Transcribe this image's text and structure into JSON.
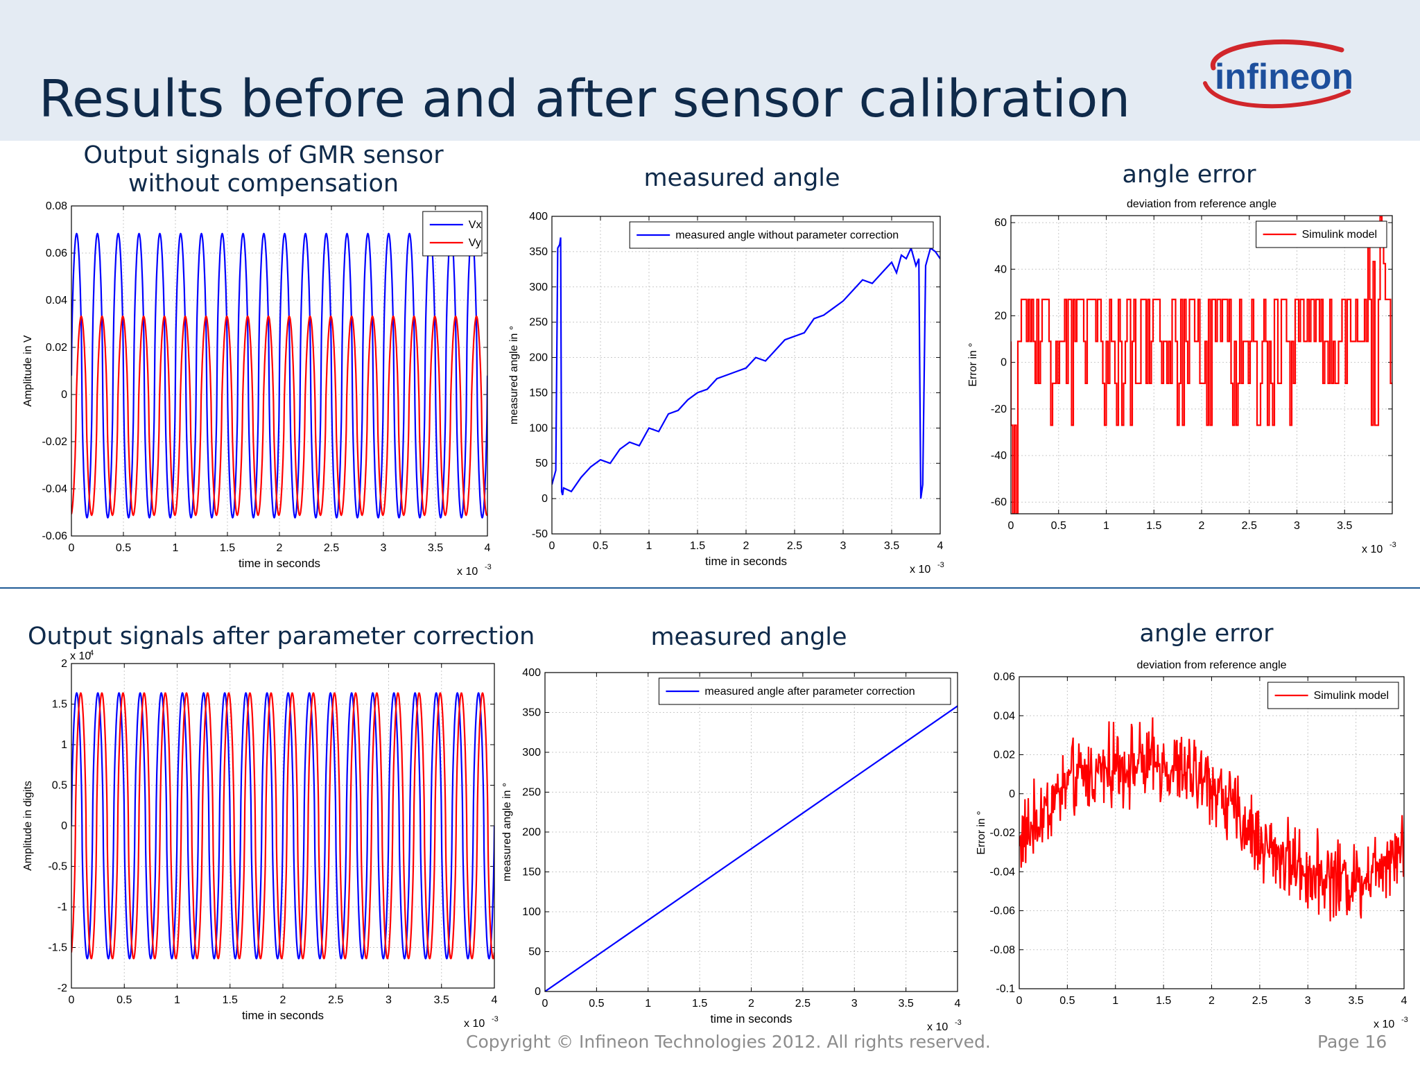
{
  "slide": {
    "title": "Results before and after sensor calibration",
    "logo_text": "infineon",
    "copyright": "Copyright © Infineon Technologies 2012. All rights reserved.",
    "page": "Page 16",
    "colors": {
      "header_bg": "#e4ebf3",
      "title": "#0f2a4a",
      "divider": "#1f5a96",
      "logo_blue": "#1d4f9c",
      "logo_red": "#d1262b"
    }
  },
  "sections": {
    "top": {
      "signals_heading": [
        "Output signals of GMR sensor",
        "without compensation"
      ],
      "angle_heading": "measured angle",
      "error_heading": "angle error"
    },
    "bottom": {
      "signals_heading": "Output signals after parameter correction",
      "angle_heading": "measured angle",
      "error_heading": "angle error"
    }
  },
  "chart_data": [
    {
      "id": "sig-top",
      "type": "line",
      "title": "",
      "xlabel": "time in seconds",
      "x_exponent": "x 10",
      "x_exponent_power": "-3",
      "ylabel": "Amplitude in V",
      "y_exponent": "",
      "y_exponent_power": "",
      "xlim": [
        0,
        4
      ],
      "ylim": [
        -0.06,
        0.08
      ],
      "grid": true,
      "legend": "top-right",
      "xticks": [
        0,
        0.5,
        1,
        1.5,
        2,
        2.5,
        3,
        3.5,
        4
      ],
      "xtick_labels": [
        "0",
        "0.5",
        "1",
        "1.5",
        "2",
        "2.5",
        "3",
        "3.5",
        "4"
      ],
      "yticks": [
        -0.06,
        -0.04,
        -0.02,
        0,
        0.02,
        0.04,
        0.06,
        0.08
      ],
      "ytick_labels": [
        "-0.06",
        "-0.04",
        "-0.02",
        "0",
        "0.02",
        "0.04",
        "0.06",
        "0.08"
      ],
      "series": [
        {
          "name": "Vx",
          "color": "#0000ff",
          "kind": "sine",
          "amplitude": 0.06,
          "offset": 0.008,
          "cycles": 20,
          "phase": 0,
          "sharpness": 1.6
        },
        {
          "name": "Vy",
          "color": "#ff0000",
          "kind": "sine",
          "amplitude": 0.042,
          "offset": -0.009,
          "cycles": 20,
          "phase": -1.4,
          "sharpness": 1.4
        }
      ]
    },
    {
      "id": "angle-top",
      "type": "line",
      "title": "",
      "xlabel": "time in seconds",
      "x_exponent": "x 10",
      "x_exponent_power": "-3",
      "ylabel": "measured angle in °",
      "xlim": [
        0,
        4
      ],
      "ylim": [
        -50,
        400
      ],
      "grid": true,
      "legend": "top",
      "xticks": [
        0,
        0.5,
        1,
        1.5,
        2,
        2.5,
        3,
        3.5,
        4
      ],
      "xtick_labels": [
        "0",
        "0.5",
        "1",
        "1.5",
        "2",
        "2.5",
        "3",
        "3.5",
        "4"
      ],
      "yticks": [
        -50,
        0,
        50,
        100,
        150,
        200,
        250,
        300,
        350,
        400
      ],
      "ytick_labels": [
        "-50",
        "0",
        "50",
        "100",
        "150",
        "200",
        "250",
        "300",
        "350",
        "400"
      ],
      "series": [
        {
          "name": "measured angle without parameter correction",
          "color": "#0000ff",
          "x": [
            0,
            0.04,
            0.06,
            0.08,
            0.09,
            0.1,
            0.11,
            0.12,
            0.2,
            0.3,
            0.4,
            0.5,
            0.6,
            0.7,
            0.8,
            0.9,
            1.0,
            1.1,
            1.2,
            1.3,
            1.4,
            1.5,
            1.6,
            1.7,
            1.8,
            1.9,
            2.0,
            2.1,
            2.2,
            2.3,
            2.4,
            2.5,
            2.6,
            2.7,
            2.8,
            2.9,
            3.0,
            3.1,
            3.2,
            3.3,
            3.4,
            3.5,
            3.55,
            3.6,
            3.65,
            3.7,
            3.75,
            3.78,
            3.8,
            3.82,
            3.85,
            3.9,
            3.95,
            4.0
          ],
          "y": [
            20,
            40,
            355,
            360,
            370,
            10,
            5,
            15,
            10,
            30,
            45,
            55,
            50,
            70,
            80,
            75,
            100,
            95,
            120,
            125,
            140,
            150,
            155,
            170,
            175,
            180,
            185,
            200,
            195,
            210,
            225,
            230,
            235,
            255,
            260,
            270,
            280,
            295,
            310,
            305,
            320,
            335,
            320,
            345,
            340,
            355,
            330,
            340,
            0,
            20,
            330,
            355,
            350,
            340
          ]
        }
      ]
    },
    {
      "id": "error-top",
      "type": "line",
      "title": "deviation from reference angle",
      "xlabel": "",
      "x_exponent": "x 10",
      "x_exponent_power": "-3",
      "ylabel": "Error in °",
      "xlim": [
        0,
        4
      ],
      "ylim": [
        -65,
        63
      ],
      "grid": true,
      "legend": "top-right",
      "xticks": [
        0,
        0.5,
        1,
        1.5,
        2,
        2.5,
        3,
        3.5
      ],
      "xtick_labels": [
        "0",
        "0.5",
        "1",
        "1.5",
        "2",
        "2.5",
        "3",
        "3.5"
      ],
      "yticks": [
        -60,
        -40,
        -20,
        0,
        20,
        40,
        60
      ],
      "ytick_labels": [
        "-60",
        "-40",
        "-20",
        "0",
        "20",
        "40",
        "60"
      ],
      "series": [
        {
          "name": "Simulink model",
          "color": "#ff0000",
          "kind": "steps",
          "levels": [
            -27,
            -9,
            9,
            27
          ],
          "start_dip": -65,
          "end_spike": 63,
          "count": 220
        }
      ]
    },
    {
      "id": "sig-bottom",
      "type": "line",
      "title": "",
      "xlabel": "time in seconds",
      "x_exponent": "x 10",
      "x_exponent_power": "-3",
      "ylabel": "Amplitude in digits",
      "y_exponent": "x 10",
      "y_exponent_power": "4",
      "xlim": [
        0,
        4
      ],
      "ylim": [
        -2,
        2
      ],
      "grid": true,
      "legend": "none",
      "xticks": [
        0,
        0.5,
        1,
        1.5,
        2,
        2.5,
        3,
        3.5,
        4
      ],
      "xtick_labels": [
        "0",
        "0.5",
        "1",
        "1.5",
        "2",
        "2.5",
        "3",
        "3.5",
        "4"
      ],
      "yticks": [
        -2,
        -1.5,
        -1,
        -0.5,
        0,
        0.5,
        1,
        1.5,
        2
      ],
      "ytick_labels": [
        "-2",
        "-1.5",
        "-1",
        "-0.5",
        "0",
        "0.5",
        "1",
        "1.5",
        "2"
      ],
      "series": [
        {
          "name": "",
          "color": "#0000ff",
          "kind": "sine",
          "amplitude": 1.63,
          "offset": 0,
          "cycles": 20,
          "phase": 0,
          "sharpness": 1.5
        },
        {
          "name": "",
          "color": "#ff0000",
          "kind": "sine",
          "amplitude": 1.63,
          "offset": 0,
          "cycles": 20,
          "phase": -1.2,
          "sharpness": 1.5
        }
      ]
    },
    {
      "id": "angle-bottom",
      "type": "line",
      "title": "",
      "xlabel": "time in seconds",
      "x_exponent": "x 10",
      "x_exponent_power": "-3",
      "ylabel": "measured angle in °",
      "xlim": [
        0,
        4
      ],
      "ylim": [
        0,
        400
      ],
      "grid": true,
      "legend": "top",
      "xticks": [
        0,
        0.5,
        1,
        1.5,
        2,
        2.5,
        3,
        3.5,
        4
      ],
      "xtick_labels": [
        "0",
        "0.5",
        "1",
        "1.5",
        "2",
        "2.5",
        "3",
        "3.5",
        "4"
      ],
      "yticks": [
        0,
        50,
        100,
        150,
        200,
        250,
        300,
        350,
        400
      ],
      "ytick_labels": [
        "0",
        "50",
        "100",
        "150",
        "200",
        "250",
        "300",
        "350",
        "400"
      ],
      "series": [
        {
          "name": "measured angle after parameter correction",
          "color": "#0000ff",
          "x": [
            0,
            4
          ],
          "y": [
            0,
            358
          ]
        }
      ]
    },
    {
      "id": "error-bottom",
      "type": "line",
      "title": "deviation from reference angle",
      "xlabel": "",
      "x_exponent": "x 10",
      "x_exponent_power": "-3",
      "ylabel": "Error in °",
      "xlim": [
        0,
        4
      ],
      "ylim": [
        -0.1,
        0.06
      ],
      "grid": true,
      "legend": "top-right",
      "xticks": [
        0,
        0.5,
        1,
        1.5,
        2,
        2.5,
        3,
        3.5,
        4
      ],
      "xtick_labels": [
        "0",
        "0.5",
        "1",
        "1.5",
        "2",
        "2.5",
        "3",
        "3.5",
        "4"
      ],
      "yticks": [
        -0.1,
        -0.08,
        -0.06,
        -0.04,
        -0.02,
        0,
        0.02,
        0.04,
        0.06
      ],
      "ytick_labels": [
        "-0.1",
        "-0.08",
        "-0.06",
        "-0.04",
        "-0.02",
        "0",
        "0.02",
        "0.04",
        "0.06"
      ],
      "series": [
        {
          "name": "Simulink model",
          "color": "#ff0000",
          "kind": "noise",
          "trend_x": [
            0,
            0.5,
            1.0,
            1.5,
            2.0,
            2.5,
            3.0,
            3.5,
            4.0
          ],
          "trend_y": [
            -0.025,
            0.005,
            0.015,
            0.015,
            0.005,
            -0.025,
            -0.04,
            -0.045,
            -0.025
          ],
          "spread": 0.022,
          "count": 600
        }
      ]
    }
  ]
}
